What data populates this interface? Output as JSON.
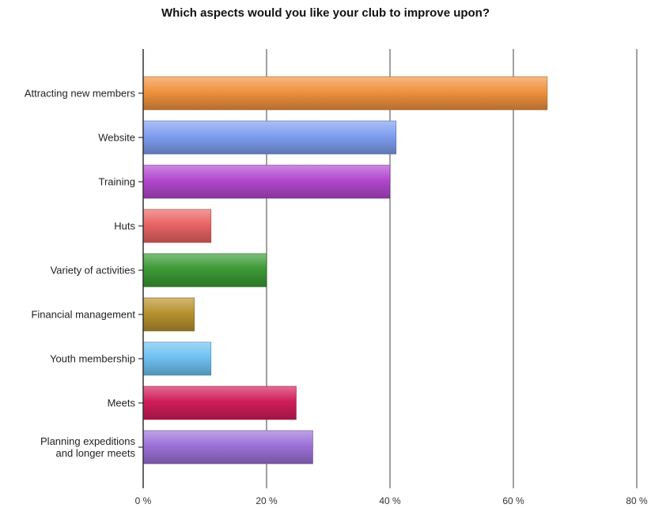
{
  "chart_data": {
    "type": "bar",
    "orientation": "horizontal",
    "title": "Which aspects would you like your club to improve upon?",
    "categories": [
      "Attracting new members",
      "Website",
      "Training",
      "Huts",
      "Variety of activities",
      "Financial management",
      "Youth membership",
      "Meets",
      "Planning expeditions and longer meets"
    ],
    "category_lines": [
      [
        "Attracting new members"
      ],
      [
        "Website"
      ],
      [
        "Training"
      ],
      [
        "Huts"
      ],
      [
        "Variety of activities"
      ],
      [
        "Financial management"
      ],
      [
        "Youth membership"
      ],
      [
        "Meets"
      ],
      [
        "Planning expeditions",
        "and longer meets"
      ]
    ],
    "values": [
      65.5,
      41,
      40,
      11,
      20,
      8.3,
      11,
      24.8,
      27.5
    ],
    "colors": [
      "#f0923e",
      "#7f9ef0",
      "#b348cf",
      "#ea6464",
      "#3c9a35",
      "#b8922e",
      "#6fc2f2",
      "#d11d5a",
      "#9c71d8"
    ],
    "xlim": [
      0,
      80
    ],
    "xticks": [
      0,
      20,
      40,
      60,
      80
    ],
    "xtick_labels": [
      "0 %",
      "20 %",
      "40 %",
      "60 %",
      "80 %"
    ],
    "xlabel": "",
    "ylabel": "",
    "grid": "vertical",
    "legend": "none"
  }
}
